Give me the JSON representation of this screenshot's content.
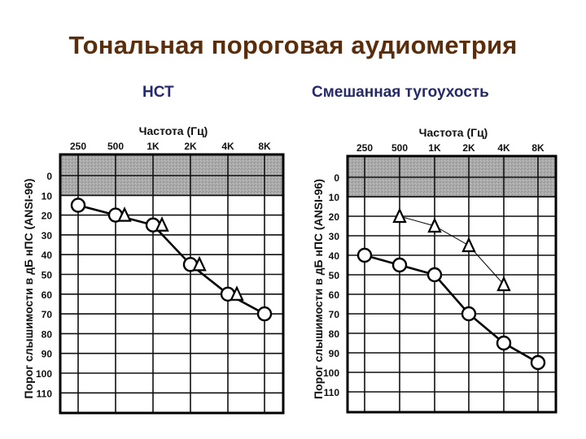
{
  "slide": {
    "title": "Тональная пороговая аудиометрия",
    "title_color": "#5a2e0c",
    "subtitle_color": "#262a6c"
  },
  "charts": {
    "left": {
      "subtitle": "НСТ"
    },
    "right": {
      "subtitle": "Смешанная тугоухость"
    }
  },
  "chart_data": [
    {
      "type": "line",
      "title": "НСТ",
      "xlabel": "Частота (Гц)",
      "ylabel": "Порог слышимости в дБ нПС (ANSI-96)",
      "categories": [
        "250",
        "500",
        "1K",
        "2K",
        "4K",
        "8K"
      ],
      "yticks": [
        0,
        10,
        20,
        30,
        40,
        50,
        60,
        70,
        80,
        90,
        100,
        110
      ],
      "ylim": [
        -10,
        120
      ],
      "y_inverted": true,
      "shaded_band": [
        -10,
        10
      ],
      "grid": true,
      "series": [
        {
          "name": "air-conduction",
          "marker": "circle",
          "values": [
            15,
            20,
            25,
            45,
            60,
            70
          ]
        },
        {
          "name": "bone-conduction",
          "marker": "triangle",
          "values": [
            null,
            20,
            25,
            45,
            60,
            null
          ]
        }
      ]
    },
    {
      "type": "line",
      "title": "Смешанная тугоухость",
      "xlabel": "Частота (Гц)",
      "ylabel": "Порог слышимости в дБ нПС (ANSI-96)",
      "categories": [
        "250",
        "500",
        "1K",
        "2K",
        "4K",
        "8K"
      ],
      "yticks": [
        0,
        10,
        20,
        30,
        40,
        50,
        60,
        70,
        80,
        90,
        100,
        110
      ],
      "ylim": [
        -10,
        120
      ],
      "y_inverted": true,
      "shaded_band": [
        -10,
        10
      ],
      "grid": true,
      "series": [
        {
          "name": "air-conduction",
          "marker": "circle",
          "values": [
            40,
            45,
            50,
            70,
            85,
            95
          ]
        },
        {
          "name": "bone-conduction",
          "marker": "triangle",
          "values": [
            null,
            20,
            25,
            35,
            55,
            null
          ]
        }
      ]
    }
  ]
}
